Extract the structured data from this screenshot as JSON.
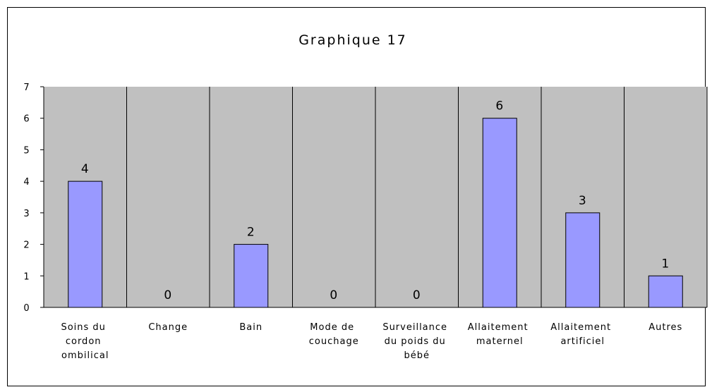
{
  "chart_data": {
    "type": "bar",
    "title": "Graphique 17",
    "categories": [
      "Soins du cordon ombilical",
      "Change",
      "Bain",
      "Mode de couchage",
      "Surveillance du poids du bébé",
      "Allaitement maternel",
      "Allaitement artificiel",
      "Autres"
    ],
    "values": [
      4,
      0,
      2,
      0,
      0,
      6,
      3,
      1
    ],
    "color": "#9999ff",
    "ylim": [
      0,
      7
    ],
    "yticks": [
      0,
      1,
      2,
      3,
      4,
      5,
      6,
      7
    ],
    "grid": false,
    "background": "#c0c0c0"
  }
}
